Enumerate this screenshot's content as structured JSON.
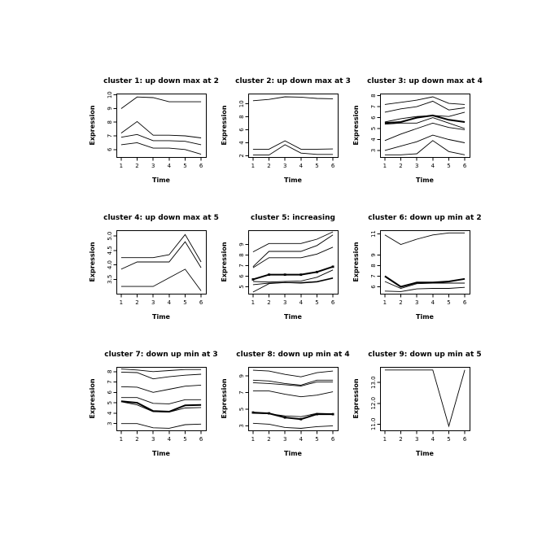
{
  "figure": {
    "background": "#ffffff",
    "line_color": "#000000",
    "text_color": "#000000"
  },
  "chart_data": [
    {
      "type": "line",
      "title": "cluster 1: up down max at 2",
      "xlabel": "Time",
      "ylabel": "Expression",
      "x": [
        1,
        2,
        3,
        4,
        5,
        6
      ],
      "xticks": [
        1,
        2,
        3,
        4,
        5,
        6
      ],
      "yticks": [
        6,
        7,
        8,
        9,
        10
      ],
      "ytick_labels": [
        "6",
        "7",
        "8",
        "9",
        "10"
      ],
      "xlim": [
        0.7,
        6.3
      ],
      "ylim": [
        5.45,
        10.1
      ],
      "grid": false,
      "legend": null,
      "series": [
        {
          "values": [
            9.0,
            9.85,
            9.8,
            9.5,
            9.5,
            9.5
          ],
          "emphasis": false,
          "markers": false
        },
        {
          "values": [
            7.2,
            8.05,
            7.05,
            7.05,
            7.0,
            6.85
          ],
          "emphasis": false,
          "markers": false
        },
        {
          "values": [
            6.9,
            7.1,
            6.65,
            6.65,
            6.6,
            6.35
          ],
          "emphasis": false,
          "markers": false
        },
        {
          "values": [
            6.35,
            6.5,
            6.1,
            6.1,
            6.0,
            5.65
          ],
          "emphasis": false,
          "markers": false
        }
      ]
    },
    {
      "type": "line",
      "title": "cluster 2: up down max at 3",
      "xlabel": "Time",
      "ylabel": "Expression",
      "x": [
        1,
        2,
        3,
        4,
        5,
        6
      ],
      "xticks": [
        1,
        2,
        3,
        4,
        5,
        6
      ],
      "yticks": [
        2,
        4,
        6,
        8,
        10
      ],
      "ytick_labels": [
        "2",
        "4",
        "6",
        "8",
        "10"
      ],
      "xlim": [
        0.7,
        6.3
      ],
      "ylim": [
        1.8,
        11.6
      ],
      "grid": false,
      "legend": null,
      "series": [
        {
          "values": [
            10.5,
            10.7,
            11.1,
            11.05,
            10.85,
            10.8
          ],
          "emphasis": false,
          "markers": false
        },
        {
          "values": [
            3.0,
            3.0,
            4.3,
            3.0,
            3.0,
            3.05
          ],
          "emphasis": false,
          "markers": false
        },
        {
          "values": [
            2.1,
            2.1,
            3.7,
            2.4,
            2.2,
            2.2
          ],
          "emphasis": false,
          "markers": false
        }
      ]
    },
    {
      "type": "line",
      "title": "cluster 3: up down max at 4",
      "xlabel": "Time",
      "ylabel": "Expression",
      "x": [
        1,
        2,
        3,
        4,
        5,
        6
      ],
      "xticks": [
        1,
        2,
        3,
        4,
        5,
        6
      ],
      "yticks": [
        3,
        4,
        5,
        6,
        7,
        8
      ],
      "ytick_labels": [
        "3",
        "4",
        "5",
        "6",
        "7",
        "8"
      ],
      "xlim": [
        0.7,
        6.3
      ],
      "ylim": [
        2.4,
        8.2
      ],
      "grid": false,
      "legend": null,
      "series": [
        {
          "values": [
            7.2,
            7.4,
            7.6,
            7.9,
            7.3,
            7.2
          ],
          "emphasis": false,
          "markers": false
        },
        {
          "values": [
            6.5,
            6.8,
            7.0,
            7.5,
            6.7,
            6.9
          ],
          "emphasis": false,
          "markers": false
        },
        {
          "values": [
            5.6,
            5.9,
            6.1,
            6.2,
            6.1,
            6.5
          ],
          "emphasis": false,
          "markers": false
        },
        {
          "values": [
            5.5,
            5.6,
            6.0,
            6.2,
            5.8,
            5.6
          ],
          "emphasis": true,
          "markers": false
        },
        {
          "values": [
            5.4,
            5.5,
            5.5,
            6.0,
            5.5,
            5.0
          ],
          "emphasis": false,
          "markers": false
        },
        {
          "values": [
            3.9,
            4.5,
            5.0,
            5.5,
            5.1,
            4.9
          ],
          "emphasis": false,
          "markers": false
        },
        {
          "values": [
            3.0,
            3.4,
            3.8,
            4.4,
            4.0,
            3.7
          ],
          "emphasis": false,
          "markers": false
        },
        {
          "values": [
            2.6,
            2.6,
            2.7,
            3.9,
            2.9,
            2.6
          ],
          "emphasis": false,
          "markers": false
        }
      ]
    },
    {
      "type": "line",
      "title": "cluster 4: up down max at 5",
      "xlabel": "Time",
      "ylabel": "Expression",
      "x": [
        1,
        2,
        3,
        4,
        5,
        6
      ],
      "xticks": [
        1,
        2,
        3,
        4,
        5,
        6
      ],
      "yticks": [
        3.5,
        4.0,
        4.5,
        5.0
      ],
      "ytick_labels": [
        "3.5",
        "4.0",
        "4.5",
        "5.0"
      ],
      "xlim": [
        0.7,
        6.3
      ],
      "ylim": [
        3.0,
        5.2
      ],
      "grid": false,
      "legend": null,
      "series": [
        {
          "values": [
            4.25,
            4.25,
            4.25,
            4.35,
            5.05,
            4.1
          ],
          "emphasis": false,
          "markers": false
        },
        {
          "values": [
            3.85,
            4.1,
            4.1,
            4.1,
            4.8,
            3.9
          ],
          "emphasis": false,
          "markers": false
        },
        {
          "values": [
            3.25,
            3.25,
            3.25,
            3.55,
            3.85,
            3.1
          ],
          "emphasis": false,
          "markers": false
        }
      ]
    },
    {
      "type": "line",
      "title": "cluster 5: increasing",
      "xlabel": "Time",
      "ylabel": "Expression",
      "x": [
        1,
        2,
        3,
        4,
        5,
        6
      ],
      "xticks": [
        1,
        2,
        3,
        4,
        5,
        6
      ],
      "yticks": [
        5,
        6,
        7,
        8,
        9
      ],
      "ytick_labels": [
        "5",
        "6",
        "7",
        "8",
        "9"
      ],
      "xlim": [
        0.7,
        6.3
      ],
      "ylim": [
        4.35,
        10.35
      ],
      "grid": false,
      "legend": null,
      "series": [
        {
          "values": [
            8.3,
            9.1,
            9.1,
            9.1,
            9.5,
            10.2
          ],
          "emphasis": false,
          "markers": false
        },
        {
          "values": [
            6.9,
            8.35,
            8.35,
            8.35,
            8.9,
            9.9
          ],
          "emphasis": false,
          "markers": false
        },
        {
          "values": [
            6.8,
            7.75,
            7.75,
            7.75,
            8.1,
            8.75
          ],
          "emphasis": false,
          "markers": false
        },
        {
          "values": [
            5.7,
            6.15,
            6.15,
            6.15,
            6.4,
            6.9
          ],
          "emphasis": true,
          "markers": true
        },
        {
          "values": [
            5.5,
            5.45,
            5.5,
            5.55,
            5.9,
            6.6
          ],
          "emphasis": false,
          "markers": false
        },
        {
          "values": [
            5.2,
            5.35,
            5.4,
            5.4,
            5.5,
            5.85
          ],
          "emphasis": false,
          "markers": false
        },
        {
          "values": [
            4.5,
            5.3,
            5.4,
            5.35,
            5.45,
            5.8
          ],
          "emphasis": false,
          "markers": false
        }
      ]
    },
    {
      "type": "line",
      "title": "cluster 6: down up min at 2",
      "xlabel": "Time",
      "ylabel": "Expression",
      "x": [
        1,
        2,
        3,
        4,
        5,
        6
      ],
      "xticks": [
        1,
        2,
        3,
        4,
        5,
        6
      ],
      "yticks": [
        6,
        7,
        8,
        9,
        11
      ],
      "ytick_labels": [
        "6",
        "7",
        "8",
        "9",
        "11"
      ],
      "xlim": [
        0.7,
        6.3
      ],
      "ylim": [
        5.35,
        11.35
      ],
      "grid": false,
      "legend": null,
      "series": [
        {
          "values": [
            10.9,
            10.0,
            10.5,
            10.9,
            11.1,
            11.1
          ],
          "emphasis": false,
          "markers": false
        },
        {
          "values": [
            7.0,
            6.0,
            6.4,
            6.4,
            6.5,
            6.75
          ],
          "emphasis": true,
          "markers": false
        },
        {
          "values": [
            6.5,
            5.85,
            6.3,
            6.35,
            6.35,
            6.35
          ],
          "emphasis": false,
          "markers": false
        },
        {
          "values": [
            5.6,
            5.55,
            5.8,
            5.85,
            5.85,
            5.95
          ],
          "emphasis": false,
          "markers": false
        }
      ]
    },
    {
      "type": "line",
      "title": "cluster 7: down up min at 3",
      "xlabel": "Time",
      "ylabel": "Expression",
      "x": [
        1,
        2,
        3,
        4,
        5,
        6
      ],
      "xticks": [
        1,
        2,
        3,
        4,
        5,
        6
      ],
      "yticks": [
        3,
        4,
        5,
        6,
        7,
        8
      ],
      "ytick_labels": [
        "3",
        "4",
        "5",
        "6",
        "7",
        "8"
      ],
      "xlim": [
        0.7,
        6.3
      ],
      "ylim": [
        2.35,
        8.45
      ],
      "grid": false,
      "legend": null,
      "series": [
        {
          "values": [
            8.25,
            8.15,
            8.0,
            8.1,
            8.2,
            8.2
          ],
          "emphasis": false,
          "markers": false
        },
        {
          "values": [
            7.95,
            7.9,
            7.3,
            7.5,
            7.65,
            7.75
          ],
          "emphasis": false,
          "markers": false
        },
        {
          "values": [
            6.55,
            6.5,
            6.0,
            6.3,
            6.6,
            6.7
          ],
          "emphasis": false,
          "markers": false
        },
        {
          "values": [
            5.5,
            5.5,
            4.95,
            4.9,
            5.3,
            5.3
          ],
          "emphasis": false,
          "markers": false
        },
        {
          "values": [
            5.15,
            5.0,
            4.2,
            4.15,
            4.75,
            4.8
          ],
          "emphasis": true,
          "markers": false
        },
        {
          "values": [
            5.1,
            4.8,
            4.15,
            4.1,
            4.5,
            4.55
          ],
          "emphasis": false,
          "markers": false
        },
        {
          "values": [
            3.0,
            3.0,
            2.6,
            2.55,
            2.9,
            2.95
          ],
          "emphasis": false,
          "markers": false
        }
      ]
    },
    {
      "type": "line",
      "title": "cluster 8: down up min at 4",
      "xlabel": "Time",
      "ylabel": "Expression",
      "x": [
        1,
        2,
        3,
        4,
        5,
        6
      ],
      "xticks": [
        1,
        2,
        3,
        4,
        5,
        6
      ],
      "yticks": [
        3,
        5,
        7,
        9
      ],
      "ytick_labels": [
        "3",
        "5",
        "7",
        "9"
      ],
      "xlim": [
        0.7,
        6.3
      ],
      "ylim": [
        2.45,
        10.1
      ],
      "grid": false,
      "legend": null,
      "series": [
        {
          "values": [
            9.7,
            9.6,
            9.2,
            8.9,
            9.4,
            9.6
          ],
          "emphasis": false,
          "markers": false
        },
        {
          "values": [
            8.5,
            8.4,
            8.1,
            7.9,
            8.5,
            8.5
          ],
          "emphasis": false,
          "markers": false
        },
        {
          "values": [
            8.2,
            8.1,
            7.95,
            7.8,
            8.3,
            8.3
          ],
          "emphasis": false,
          "markers": false
        },
        {
          "values": [
            7.2,
            7.2,
            6.8,
            6.5,
            6.7,
            7.1
          ],
          "emphasis": false,
          "markers": false
        },
        {
          "values": [
            4.6,
            4.5,
            4.0,
            3.8,
            4.4,
            4.4
          ],
          "emphasis": true,
          "markers": true
        },
        {
          "values": [
            4.5,
            4.45,
            4.2,
            4.1,
            4.5,
            4.45
          ],
          "emphasis": false,
          "markers": false
        },
        {
          "values": [
            3.3,
            3.2,
            2.8,
            2.7,
            2.9,
            3.0
          ],
          "emphasis": false,
          "markers": false
        }
      ]
    },
    {
      "type": "line",
      "title": "cluster 9: down up min at 5",
      "xlabel": "Time",
      "ylabel": "Expression",
      "x": [
        1,
        2,
        3,
        4,
        5,
        6
      ],
      "xticks": [
        1,
        2,
        3,
        4,
        5,
        6
      ],
      "yticks": [
        11,
        12,
        13
      ],
      "ytick_labels": [
        "11.0",
        "12.0",
        "13.0"
      ],
      "xlim": [
        0.7,
        6.3
      ],
      "ylim": [
        10.7,
        13.75
      ],
      "grid": false,
      "legend": null,
      "series": [
        {
          "values": [
            13.6,
            13.6,
            13.6,
            13.6,
            10.9,
            13.6
          ],
          "emphasis": false,
          "markers": false
        }
      ]
    }
  ]
}
